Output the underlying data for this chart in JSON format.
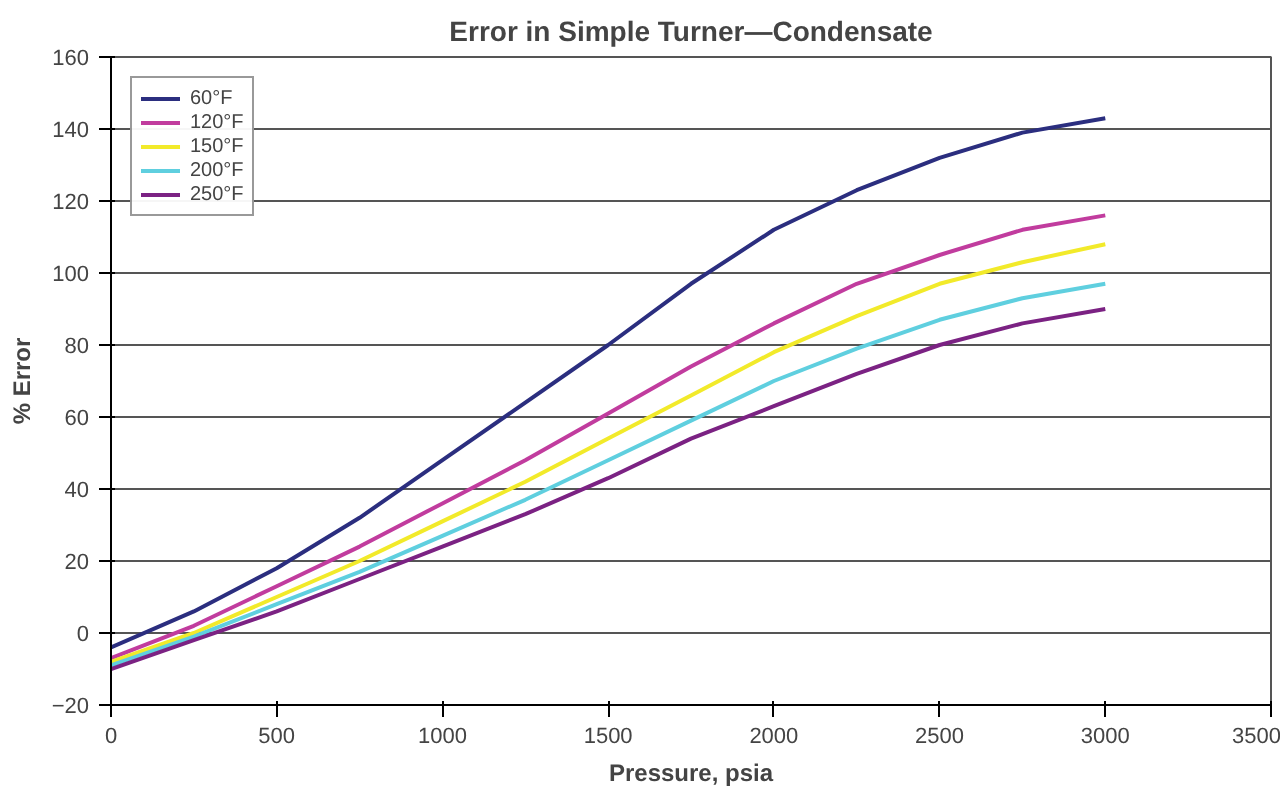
{
  "chart_data": {
    "type": "line",
    "title": "Error in Simple Turner—Condensate",
    "xlabel": "Pressure, psia",
    "ylabel": "% Error",
    "x": [
      0,
      250,
      500,
      750,
      1000,
      1250,
      1500,
      1750,
      2000,
      2250,
      2500,
      2750,
      3000
    ],
    "series": [
      {
        "name": "60°F",
        "color": "#2b2e7f",
        "values": [
          -4,
          6,
          18,
          32,
          48,
          64,
          80,
          97,
          112,
          123,
          132,
          139,
          143
        ]
      },
      {
        "name": "120°F",
        "color": "#c13c9e",
        "values": [
          -7,
          2,
          13,
          24,
          36,
          48,
          61,
          74,
          86,
          97,
          105,
          112,
          116
        ]
      },
      {
        "name": "150°F",
        "color": "#f2ea2a",
        "values": [
          -8,
          0,
          10,
          20,
          31,
          42,
          54,
          66,
          78,
          88,
          97,
          103,
          108
        ]
      },
      {
        "name": "200°F",
        "color": "#5fcfdf",
        "values": [
          -9,
          -1,
          8,
          17,
          27,
          37,
          48,
          59,
          70,
          79,
          87,
          93,
          97
        ]
      },
      {
        "name": "250°F",
        "color": "#7b2283",
        "values": [
          -10,
          -2,
          6,
          15,
          24,
          33,
          43,
          54,
          63,
          72,
          80,
          86,
          90
        ]
      }
    ],
    "xlim": [
      0,
      3500
    ],
    "ylim": [
      -20,
      160
    ],
    "xticks": [
      0,
      500,
      1000,
      1500,
      2000,
      2500,
      3000,
      3500
    ],
    "yticks": [
      -20,
      0,
      20,
      40,
      60,
      80,
      100,
      120,
      140,
      160
    ],
    "grid": "y",
    "legend": "top left",
    "line_style": "solid"
  }
}
